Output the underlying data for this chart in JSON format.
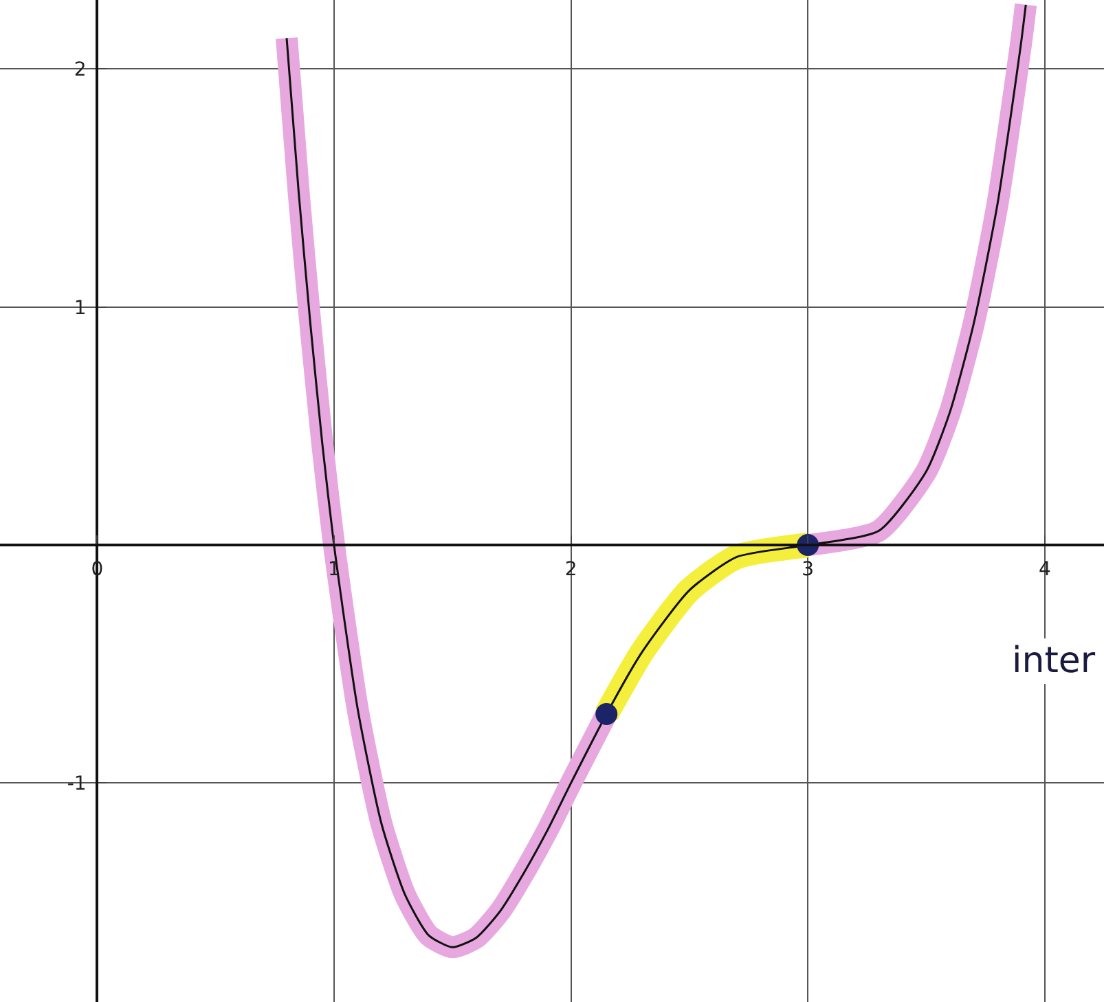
{
  "chart_data": {
    "type": "line",
    "x": [
      0.8,
      0.85,
      0.9,
      0.95,
      1,
      1.1,
      1.2,
      1.3,
      1.4,
      1.5,
      1.6,
      1.7,
      1.8,
      1.9,
      2,
      2.15,
      2.3,
      2.5,
      2.7,
      3,
      3.3,
      3.5,
      3.6,
      3.7,
      3.8,
      3.9,
      3.92
    ],
    "series": [
      {
        "color": "#e6a8de",
        "values": [
          2.13,
          1.49,
          0.93,
          0.43,
          0,
          -0.69,
          -1.17,
          -1.47,
          -1.64,
          -1.69,
          -1.65,
          -1.54,
          -1.38,
          -1.2,
          -1,
          -0.71,
          null,
          null,
          null,
          0,
          0.06,
          0.31,
          0.56,
          0.93,
          1.43,
          2.11,
          2.27
        ]
      },
      {
        "color": "#f4ee3c",
        "values": [
          null,
          null,
          null,
          null,
          null,
          null,
          null,
          null,
          null,
          null,
          null,
          null,
          null,
          null,
          null,
          -0.71,
          -0.45,
          -0.19,
          -0.05,
          0,
          null,
          null,
          null,
          null,
          null,
          null,
          null
        ]
      },
      {
        "color": "#111111",
        "values": [
          2.13,
          1.49,
          0.93,
          0.43,
          0,
          -0.69,
          -1.17,
          -1.47,
          -1.64,
          -1.69,
          -1.65,
          -1.54,
          -1.38,
          -1.2,
          -1,
          -0.71,
          -0.45,
          -0.19,
          -0.05,
          0,
          0.06,
          0.31,
          0.56,
          0.93,
          1.43,
          2.11,
          2.27
        ]
      },
      {
        "type": "scatter",
        "color": "#1b2466",
        "x": [
          2.15,
          3
        ],
        "values": [
          -0.71,
          0
        ]
      }
    ],
    "xlim": [
      -0.41,
      4.25
    ],
    "ylim": [
      -1.92,
      2.29
    ],
    "xticks": [
      0,
      1,
      2,
      3,
      4
    ],
    "yticks": [
      -1,
      1,
      2
    ],
    "grid": true,
    "annotations": [
      "inter"
    ]
  }
}
